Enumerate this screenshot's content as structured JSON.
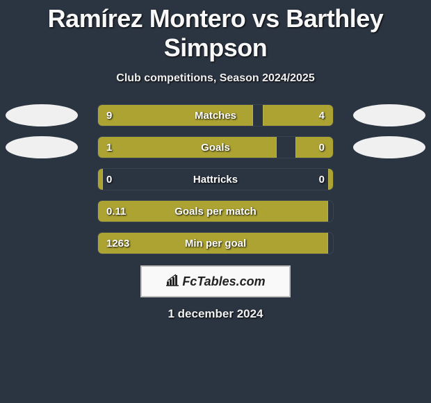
{
  "title": "Ramírez Montero vs Barthley Simpson",
  "subtitle": "Club competitions, Season 2024/2025",
  "date": "1 december 2024",
  "logo_text": "FcTables.com",
  "colors": {
    "background": "#2b3441",
    "bar_fill": "#aca332",
    "ellipse": "#f0f0f0",
    "logo_border": "#bfbfbf",
    "logo_bg": "#f9f9f9",
    "text": "#ffffff"
  },
  "rows": [
    {
      "label": "Matches",
      "left_val": "9",
      "right_val": "4",
      "left_pct": 66,
      "right_pct": 30,
      "show_ellipses": true
    },
    {
      "label": "Goals",
      "left_val": "1",
      "right_val": "0",
      "left_pct": 76,
      "right_pct": 16,
      "show_ellipses": true
    },
    {
      "label": "Hattricks",
      "left_val": "0",
      "right_val": "0",
      "left_pct": 2,
      "right_pct": 2,
      "show_ellipses": false
    },
    {
      "label": "Goals per match",
      "left_val": "0.11",
      "right_val": "",
      "left_pct": 98,
      "right_pct": 0,
      "show_ellipses": false
    },
    {
      "label": "Min per goal",
      "left_val": "1263",
      "right_val": "",
      "left_pct": 98,
      "right_pct": 0,
      "show_ellipses": false
    }
  ]
}
